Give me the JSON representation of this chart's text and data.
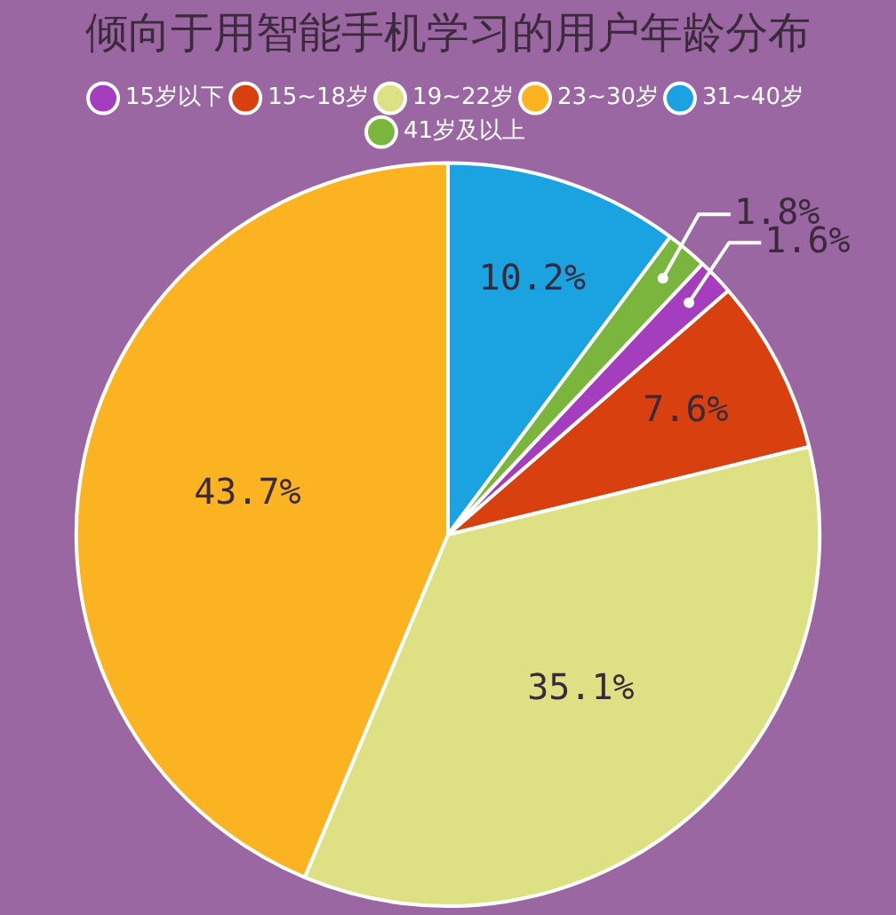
{
  "chart_data": {
    "type": "pie",
    "title": "倾向于用智能手机学习的用户年龄分布",
    "categories": [
      "15岁以下",
      "15~18岁",
      "19~22岁",
      "23~30岁",
      "31~40岁",
      "41岁及以上"
    ],
    "values": [
      1.6,
      7.6,
      35.1,
      43.7,
      10.2,
      1.8
    ],
    "value_labels": [
      "1.6%",
      "7.6%",
      "35.1%",
      "43.7%",
      "10.2%",
      "1.8%"
    ],
    "colors": [
      "#a53dbf",
      "#d9400f",
      "#dde184",
      "#fbb322",
      "#1aa3e0",
      "#7ab63e"
    ],
    "legend": "top"
  }
}
